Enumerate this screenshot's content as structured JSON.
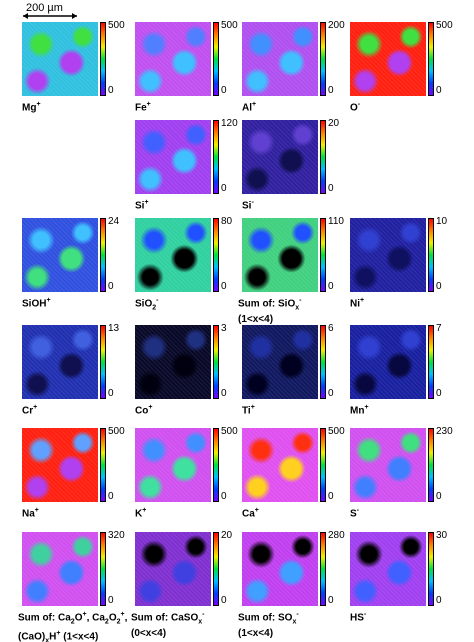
{
  "scale_bar": "200 µm",
  "rows": [
    [
      {
        "label": [
          [
            {
              "text": "Mg"
            },
            {
              "text": "+",
              "pos": "sup"
            }
          ]
        ],
        "max": 500,
        "min": 0,
        "colors": [
          "#30c0e0",
          "#40e040",
          "#b040f0"
        ]
      },
      {
        "label": [
          [
            {
              "text": "Fe"
            },
            {
              "text": "+",
              "pos": "sup"
            }
          ]
        ],
        "max": 500,
        "min": 0,
        "colors": [
          "#c050f0",
          "#5080ff",
          "#40c0ff"
        ]
      },
      {
        "label": [
          [
            {
              "text": "Al"
            },
            {
              "text": "+",
              "pos": "sup"
            }
          ]
        ],
        "max": 200,
        "min": 0,
        "colors": [
          "#b050f0",
          "#4090ff",
          "#40c0ff"
        ]
      },
      {
        "label": [
          [
            {
              "text": "O"
            },
            {
              "text": "-",
              "pos": "sup"
            }
          ]
        ],
        "max": 500,
        "min": 0,
        "colors": [
          "#ff2010",
          "#40e040",
          "#b040f0"
        ]
      }
    ],
    [
      {
        "label": [
          [
            {
              "text": "Si"
            },
            {
              "text": "+",
              "pos": "sup"
            }
          ]
        ],
        "max": 120,
        "min": 0,
        "colors": [
          "#a040f0",
          "#4060ff",
          "#40c0ff"
        ]
      },
      {
        "label": [
          [
            {
              "text": "Si"
            },
            {
              "text": "-",
              "pos": "sup"
            }
          ]
        ],
        "max": 20,
        "min": 0,
        "colors": [
          "#3020a0",
          "#6040d0",
          "#101050"
        ]
      }
    ],
    [
      {
        "label": [
          [
            {
              "text": "SiOH"
            },
            {
              "text": "+",
              "pos": "sup"
            }
          ]
        ],
        "max": 24,
        "min": 0,
        "colors": [
          "#3050e0",
          "#40c0ff",
          "#40e080"
        ]
      },
      {
        "label": [
          [
            {
              "text": "SiO"
            },
            {
              "text": "2",
              "pos": "sub"
            },
            {
              "text": "-",
              "pos": "sup"
            }
          ]
        ],
        "max": 80,
        "min": 0,
        "colors": [
          "#30d0a0",
          "#2050ff",
          "#000000"
        ]
      },
      {
        "label": [
          [
            {
              "text": "Sum of: SiO"
            },
            {
              "text": "x",
              "pos": "sub"
            },
            {
              "text": "-",
              "pos": "sup"
            }
          ],
          [
            {
              "text": "(1<x<4)"
            }
          ]
        ],
        "max": 110,
        "min": 0,
        "colors": [
          "#40d080",
          "#2050ff",
          "#000000"
        ]
      },
      {
        "label": [
          [
            {
              "text": "Ni"
            },
            {
              "text": "+",
              "pos": "sup"
            }
          ]
        ],
        "max": 10,
        "min": 0,
        "colors": [
          "#2020a0",
          "#3040d0",
          "#101060"
        ]
      }
    ],
    [
      {
        "label": [
          [
            {
              "text": "Cr"
            },
            {
              "text": "+",
              "pos": "sup"
            }
          ]
        ],
        "max": 13,
        "min": 0,
        "colors": [
          "#2030b0",
          "#4060e0",
          "#101050"
        ]
      },
      {
        "label": [
          [
            {
              "text": "Co"
            },
            {
              "text": "+",
              "pos": "sup"
            }
          ]
        ],
        "max": 3,
        "min": 0,
        "colors": [
          "#080828",
          "#203080",
          "#000010"
        ]
      },
      {
        "label": [
          [
            {
              "text": "Ti"
            },
            {
              "text": "+",
              "pos": "sup"
            }
          ]
        ],
        "max": 6,
        "min": 0,
        "colors": [
          "#101860",
          "#2030a0",
          "#000020"
        ]
      },
      {
        "label": [
          [
            {
              "text": "Mn"
            },
            {
              "text": "+",
              "pos": "sup"
            }
          ]
        ],
        "max": 7,
        "min": 0,
        "colors": [
          "#1820a0",
          "#3040d0",
          "#080840"
        ]
      }
    ],
    [
      {
        "label": [
          [
            {
              "text": "Na"
            },
            {
              "text": "+",
              "pos": "sup"
            }
          ]
        ],
        "max": 500,
        "min": 0,
        "colors": [
          "#ff2010",
          "#60a0ff",
          "#b040f0"
        ]
      },
      {
        "label": [
          [
            {
              "text": "K"
            },
            {
              "text": "+",
              "pos": "sup"
            }
          ]
        ],
        "max": 500,
        "min": 0,
        "colors": [
          "#d050f0",
          "#4090ff",
          "#40e0a0"
        ]
      },
      {
        "label": [
          [
            {
              "text": "Ca"
            },
            {
              "text": "+",
              "pos": "sup"
            }
          ]
        ],
        "max": 500,
        "min": 0,
        "colors": [
          "#e050f0",
          "#ff3010",
          "#ffd020"
        ]
      },
      {
        "label": [
          [
            {
              "text": "S"
            },
            {
              "text": "-",
              "pos": "sup"
            }
          ]
        ],
        "max": 230,
        "min": 0,
        "colors": [
          "#d050f0",
          "#40e080",
          "#4080ff"
        ]
      }
    ],
    [
      {
        "label": [
          [
            {
              "text": "Sum of: Ca"
            },
            {
              "text": "2",
              "pos": "sub"
            },
            {
              "text": "O"
            },
            {
              "text": "+",
              "pos": "sup"
            },
            {
              "text": ", Ca"
            },
            {
              "text": "2",
              "pos": "sub"
            },
            {
              "text": "O"
            },
            {
              "text": "2",
              "pos": "sub"
            },
            {
              "text": "+",
              "pos": "sup"
            },
            {
              "text": ","
            }
          ],
          [
            {
              "text": "(CaO)"
            },
            {
              "text": "x",
              "pos": "sub"
            },
            {
              "text": "H"
            },
            {
              "text": "+",
              "pos": "sup"
            },
            {
              "text": " (1<x<4)"
            }
          ]
        ],
        "max": 320,
        "min": 0,
        "colors": [
          "#d050f0",
          "#40d0a0",
          "#4080ff"
        ]
      },
      {
        "label": [
          [
            {
              "text": "Sum of: CaSO"
            },
            {
              "text": "x",
              "pos": "sub"
            },
            {
              "text": "-",
              "pos": "sup"
            }
          ],
          [
            {
              "text": "(0<x<4)"
            }
          ]
        ],
        "max": 20,
        "min": 0,
        "colors": [
          "#8030d0",
          "#000000",
          "#4040e0"
        ]
      },
      {
        "label": [
          [
            {
              "text": "Sum of: SO"
            },
            {
              "text": "x",
              "pos": "sub"
            },
            {
              "text": "-",
              "pos": "sup"
            }
          ],
          [
            {
              "text": "(1<x<4)"
            }
          ]
        ],
        "max": 280,
        "min": 0,
        "colors": [
          "#c040f0",
          "#000000",
          "#40a0ff"
        ]
      },
      {
        "label": [
          [
            {
              "text": "HS"
            },
            {
              "text": "-",
              "pos": "sup"
            }
          ]
        ],
        "max": 30,
        "min": 0,
        "colors": [
          "#a040f0",
          "#000000",
          "#4060ff"
        ]
      }
    ]
  ]
}
